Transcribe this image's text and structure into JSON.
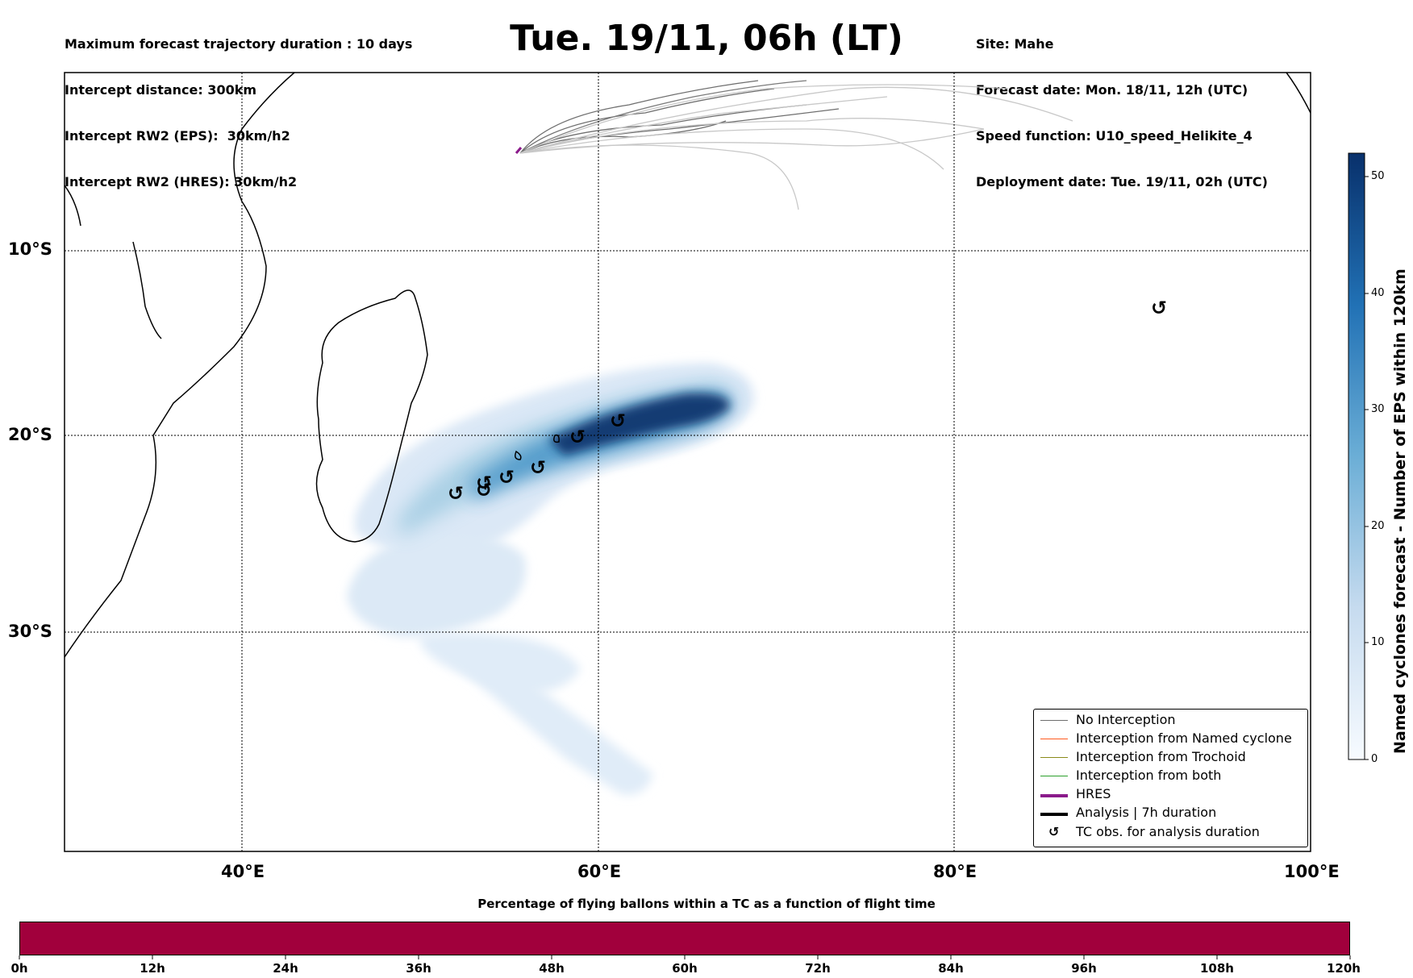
{
  "header": {
    "left_lines": [
      "Maximum forecast trajectory duration : 10 days",
      "Intercept distance: 300km",
      "Intercept RW2 (EPS):  30km/h2",
      "Intercept RW2 (HRES): 30km/h2"
    ],
    "title": "Tue. 19/11, 06h (LT)",
    "right_lines": [
      "Site: Mahe",
      "Forecast date: Mon. 18/11, 12h (UTC)",
      "Speed function: U10_speed_Helikite_4",
      "Deployment date: Tue. 19/11, 02h (UTC)"
    ]
  },
  "map": {
    "lat_labels": [
      "10°S",
      "20°S",
      "30°S"
    ],
    "lon_labels": [
      "40°E",
      "60°E",
      "80°E",
      "100°E"
    ],
    "tc_marker_symbol": "↺"
  },
  "colorbar": {
    "title": "Named cyclones forecast - Number of EPS within 120km",
    "ticks": [
      "0",
      "10",
      "20",
      "30",
      "40",
      "50"
    ],
    "range": [
      0,
      52
    ],
    "colors": [
      "#f7fbff",
      "#c6dbef",
      "#6baed6",
      "#2171b5",
      "#08306b"
    ]
  },
  "legend": {
    "items": [
      {
        "label": "No Interception",
        "color": "#6e6e6e",
        "kind": "line"
      },
      {
        "label": "Interception from Named cyclone",
        "color": "#ff5a1f",
        "kind": "line"
      },
      {
        "label": "Interception from Trochoid",
        "color": "#8a8a1a",
        "kind": "line"
      },
      {
        "label": "Interception from both",
        "color": "#2ca02c",
        "kind": "line"
      },
      {
        "label": "HRES",
        "color": "#8b1a8b",
        "kind": "thick"
      },
      {
        "label": "Analysis | 7h duration",
        "color": "#000000",
        "kind": "thick"
      },
      {
        "label": "TC obs. for analysis duration",
        "color": "#000000",
        "kind": "marker"
      }
    ]
  },
  "flight_time_bar": {
    "title": "Percentage of flying ballons within a TC as a function of flight time",
    "ticks": [
      "0h",
      "12h",
      "24h",
      "36h",
      "48h",
      "60h",
      "72h",
      "84h",
      "96h",
      "108h",
      "120h"
    ],
    "fill_color": "#a1003c",
    "fill_fraction": 1.0
  }
}
